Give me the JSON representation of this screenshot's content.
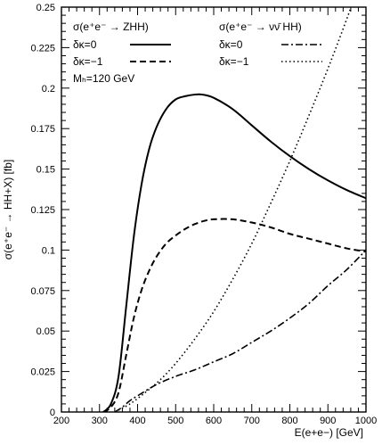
{
  "chart_data": {
    "type": "line",
    "title": "",
    "xlabel": "E(e+e−) [GeV]",
    "ylabel": "σ(e⁺e⁻ → HH+X) [fb]",
    "xlim": [
      200,
      1000
    ],
    "ylim": [
      0,
      0.25
    ],
    "grid": false,
    "legend": "top",
    "xticks": [
      "200",
      "300",
      "400",
      "500",
      "600",
      "700",
      "800",
      "900",
      "1000"
    ],
    "yticks": [
      "0",
      "0.025",
      "0.05",
      "0.075",
      "0.1",
      "0.125",
      "0.15",
      "0.175",
      "0.2",
      "0.225",
      "0.25"
    ],
    "legend_headers": [
      "σ(e⁺e⁻ → ZHH)",
      "σ(e⁺e⁻ → νν̄ HH)"
    ],
    "annotation": "Mₕ=120 GeV",
    "series": [
      {
        "name": "δκ=0",
        "process": "ZHH",
        "style": "solid",
        "x": [
          310,
          330,
          350,
          370,
          390,
          410,
          430,
          450,
          475,
          500,
          525,
          550,
          570,
          600,
          650,
          700,
          750,
          800,
          850,
          900,
          950,
          1000
        ],
        "y": [
          0.0,
          0.005,
          0.022,
          0.065,
          0.108,
          0.14,
          0.162,
          0.176,
          0.187,
          0.193,
          0.195,
          0.196,
          0.196,
          0.194,
          0.187,
          0.177,
          0.167,
          0.158,
          0.15,
          0.143,
          0.137,
          0.132
        ]
      },
      {
        "name": "δκ=−1",
        "process": "ZHH",
        "style": "dashed",
        "x": [
          310,
          330,
          350,
          370,
          390,
          410,
          430,
          450,
          475,
          500,
          525,
          550,
          575,
          600,
          650,
          700,
          750,
          800,
          850,
          900,
          950,
          1000
        ],
        "y": [
          0.0,
          0.003,
          0.012,
          0.035,
          0.058,
          0.075,
          0.087,
          0.096,
          0.104,
          0.109,
          0.113,
          0.116,
          0.118,
          0.119,
          0.119,
          0.117,
          0.114,
          0.11,
          0.107,
          0.104,
          0.101,
          0.099
        ]
      },
      {
        "name": "δκ=0",
        "process": "νν̄HH",
        "style": "dashdot",
        "x": [
          340,
          360,
          380,
          400,
          450,
          500,
          550,
          600,
          650,
          700,
          750,
          800,
          850,
          900,
          950,
          1000
        ],
        "y": [
          0.0,
          0.003,
          0.007,
          0.01,
          0.017,
          0.022,
          0.026,
          0.031,
          0.036,
          0.043,
          0.05,
          0.058,
          0.067,
          0.078,
          0.088,
          0.1
        ]
      },
      {
        "name": "δκ=−1",
        "process": "νν̄HH",
        "style": "dotted",
        "x": [
          340,
          380,
          420,
          460,
          500,
          550,
          600,
          650,
          700,
          750,
          800,
          850,
          900,
          950,
          1000
        ],
        "y": [
          0.0,
          0.005,
          0.012,
          0.02,
          0.03,
          0.045,
          0.062,
          0.082,
          0.104,
          0.129,
          0.155,
          0.183,
          0.212,
          0.243,
          0.276
        ]
      }
    ]
  }
}
